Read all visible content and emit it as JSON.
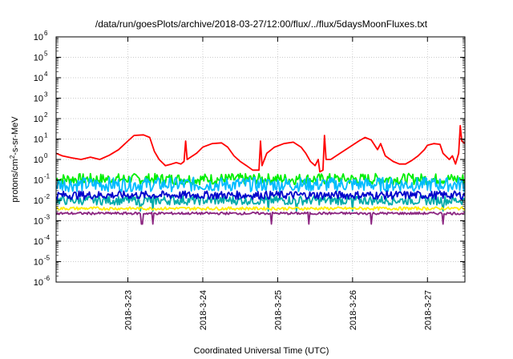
{
  "chart_data": {
    "type": "line",
    "title": "/data/run/goesPlots/archive/2018-03-27/12:00/flux/../flux/5daysMoonFluxes.txt",
    "xlabel": "Coordinated Universal Time (UTC)",
    "ylabel": "protons/cm²-s-sr-MeV",
    "y_scale": "log",
    "ylim": [
      1e-06,
      1000000.0
    ],
    "xlim": [
      "2018-03-22T01:00",
      "2018-03-27T12:00"
    ],
    "y_ticks": [
      {
        "value": 1e-06,
        "base": "10",
        "exp": "-6"
      },
      {
        "value": 1e-05,
        "base": "10",
        "exp": "-5"
      },
      {
        "value": 0.0001,
        "base": "10",
        "exp": "-4"
      },
      {
        "value": 0.001,
        "base": "10",
        "exp": "-3"
      },
      {
        "value": 0.01,
        "base": "10",
        "exp": "-2"
      },
      {
        "value": 0.1,
        "base": "10",
        "exp": "-1"
      },
      {
        "value": 1,
        "base": "10",
        "exp": "0"
      },
      {
        "value": 10,
        "base": "10",
        "exp": "1"
      },
      {
        "value": 100,
        "base": "10",
        "exp": "2"
      },
      {
        "value": 1000,
        "base": "10",
        "exp": "3"
      },
      {
        "value": 10000,
        "base": "10",
        "exp": "4"
      },
      {
        "value": 100000,
        "base": "10",
        "exp": "5"
      },
      {
        "value": 1000000,
        "base": "10",
        "exp": "6"
      }
    ],
    "x_ticks": [
      {
        "date": "2018-03-23T00:00",
        "label": "2018-3-23"
      },
      {
        "date": "2018-03-24T00:00",
        "label": "2018-3-24"
      },
      {
        "date": "2018-03-25T00:00",
        "label": "2018-3-25"
      },
      {
        "date": "2018-03-26T00:00",
        "label": "2018-3-26"
      },
      {
        "date": "2018-03-27T00:00",
        "label": "2018-3-27"
      }
    ],
    "grid": true,
    "legend": "none",
    "series": [
      {
        "color": "#ff0000",
        "points": [
          [
            "2018-03-22T01:00",
            2.0
          ],
          [
            "2018-03-22T03:00",
            1.5
          ],
          [
            "2018-03-22T06:00",
            1.2
          ],
          [
            "2018-03-22T09:00",
            1.0
          ],
          [
            "2018-03-22T12:00",
            1.3
          ],
          [
            "2018-03-22T15:00",
            1.0
          ],
          [
            "2018-03-22T18:00",
            1.6
          ],
          [
            "2018-03-22T21:00",
            3.0
          ],
          [
            "2018-03-23T00:00",
            8.0
          ],
          [
            "2018-03-23T02:00",
            15.0
          ],
          [
            "2018-03-23T05:00",
            16.0
          ],
          [
            "2018-03-23T07:00",
            12.0
          ],
          [
            "2018-03-23T08:30",
            2.5
          ],
          [
            "2018-03-23T10:00",
            1.0
          ],
          [
            "2018-03-23T12:00",
            0.5
          ],
          [
            "2018-03-23T14:00",
            0.6
          ],
          [
            "2018-03-23T15:30",
            0.7
          ],
          [
            "2018-03-23T17:00",
            0.6
          ],
          [
            "2018-03-23T18:00",
            0.8
          ],
          [
            "2018-03-23T18:30",
            8.0
          ],
          [
            "2018-03-23T19:00",
            1.0
          ],
          [
            "2018-03-23T22:00",
            2.0
          ],
          [
            "2018-03-24T00:00",
            4.0
          ],
          [
            "2018-03-24T03:00",
            6.0
          ],
          [
            "2018-03-24T06:00",
            6.5
          ],
          [
            "2018-03-24T08:00",
            4.0
          ],
          [
            "2018-03-24T10:00",
            1.5
          ],
          [
            "2018-03-24T12:00",
            0.8
          ],
          [
            "2018-03-24T14:00",
            0.5
          ],
          [
            "2018-03-24T16:00",
            0.3
          ],
          [
            "2018-03-24T18:00",
            0.3
          ],
          [
            "2018-03-24T18:30",
            8.0
          ],
          [
            "2018-03-24T19:00",
            0.5
          ],
          [
            "2018-03-24T20:30",
            2.0
          ],
          [
            "2018-03-24T23:00",
            4.0
          ],
          [
            "2018-03-25T02:00",
            6.0
          ],
          [
            "2018-03-25T05:00",
            7.0
          ],
          [
            "2018-03-25T07:30",
            4.0
          ],
          [
            "2018-03-25T09:00",
            2.0
          ],
          [
            "2018-03-25T10:30",
            0.8
          ],
          [
            "2018-03-25T12:00",
            0.5
          ],
          [
            "2018-03-25T13:00",
            1.0
          ],
          [
            "2018-03-25T13:30",
            0.25
          ],
          [
            "2018-03-25T14:30",
            0.3
          ],
          [
            "2018-03-25T15:00",
            15.0
          ],
          [
            "2018-03-25T15:30",
            1.0
          ],
          [
            "2018-03-25T17:00",
            1.0
          ],
          [
            "2018-03-25T20:00",
            2.0
          ],
          [
            "2018-03-25T23:00",
            4.0
          ],
          [
            "2018-03-26T02:00",
            8.0
          ],
          [
            "2018-03-26T04:00",
            12.0
          ],
          [
            "2018-03-26T06:00",
            9.0
          ],
          [
            "2018-03-26T08:00",
            3.0
          ],
          [
            "2018-03-26T09:00",
            6.0
          ],
          [
            "2018-03-26T10:30",
            1.5
          ],
          [
            "2018-03-26T13:00",
            0.8
          ],
          [
            "2018-03-26T15:00",
            0.6
          ],
          [
            "2018-03-26T17:00",
            0.6
          ],
          [
            "2018-03-26T19:00",
            0.9
          ],
          [
            "2018-03-26T21:00",
            1.5
          ],
          [
            "2018-03-26T23:00",
            3.0
          ],
          [
            "2018-03-27T00:00",
            5.0
          ],
          [
            "2018-03-27T02:00",
            6.0
          ],
          [
            "2018-03-27T04:00",
            5.5
          ],
          [
            "2018-03-27T05:00",
            2.0
          ],
          [
            "2018-03-27T07:00",
            1.0
          ],
          [
            "2018-03-27T08:00",
            1.5
          ],
          [
            "2018-03-27T09:00",
            0.6
          ],
          [
            "2018-03-27T10:00",
            2.0
          ],
          [
            "2018-03-27T10:30",
            45.0
          ],
          [
            "2018-03-27T11:00",
            8.0
          ],
          [
            "2018-03-27T12:00",
            6.0
          ]
        ]
      },
      {
        "color": "#00ee00",
        "base": 0.11,
        "amplitude": 0.55,
        "dips": []
      },
      {
        "color": "#00bbff",
        "base": 0.06,
        "amplitude": 0.7,
        "dips": []
      },
      {
        "color": "#00aaaa",
        "base": 0.01,
        "amplitude": 0.45,
        "dips": [
          "2018-03-23T04:00",
          "2018-03-23T08:00",
          "2018-03-24T21:00",
          "2018-03-25T06:00",
          "2018-03-26T00:00",
          "2018-03-27T05:00"
        ]
      },
      {
        "color": "#0000cc",
        "base": 0.018,
        "amplitude": 0.4,
        "dips": []
      },
      {
        "color": "#ffee00",
        "base": 0.004,
        "amplitude": 0.15,
        "dips": []
      },
      {
        "color": "#8b2580",
        "base": 0.0023,
        "amplitude": 0.12,
        "dips": [
          "2018-03-23T04:30",
          "2018-03-23T08:00",
          "2018-03-24T22:00",
          "2018-03-25T10:00",
          "2018-03-26T06:00",
          "2018-03-27T05:00"
        ]
      }
    ]
  }
}
